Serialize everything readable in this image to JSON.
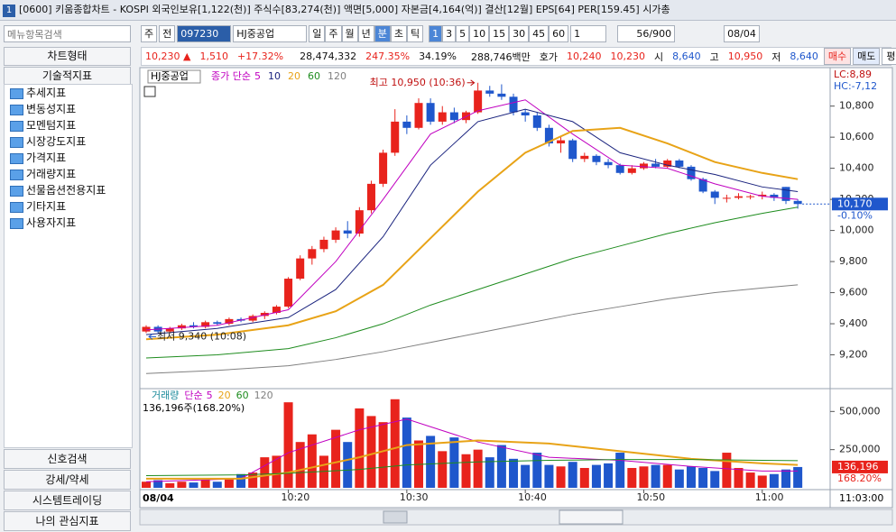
{
  "window": {
    "number": "1",
    "title": "[0600] 키움종합차트 - KOSPI 외국인보유[1,122(천)] 주식수[83,274(천)] 액면[5,000] 자본금[4,164(억)] 결산[12월] EPS[64] PER[159.45] 시가총"
  },
  "toolbar": {
    "search_placeholder": "메뉴항목검색",
    "period": "주",
    "prev": "전",
    "code": "097230",
    "stock": "HJ중공업",
    "buttons": [
      "일",
      "주",
      "월",
      "년",
      "분",
      "초",
      "틱"
    ],
    "minutes": [
      "1",
      "3",
      "5",
      "10",
      "15",
      "30",
      "45",
      "60"
    ],
    "unit": "1",
    "count": "56/900",
    "date": "08/04"
  },
  "quote": {
    "price": "10,230 ▲",
    "change": "1,510",
    "rate": "+17.32%",
    "volume": "28,474,332",
    "vol_rate": "247.35%",
    "turnover": "34.19%",
    "amount": "288,746백만",
    "hoga": "호가",
    "bid": "10,240",
    "ask": "10,230",
    "open_label": "시",
    "open": "8,640",
    "high_label": "고",
    "high": "10,950",
    "low_label": "저",
    "low": "8,640",
    "buy": "매수",
    "sell": "매도",
    "avg": "평"
  },
  "sidebar": {
    "top": [
      "차트형태",
      "기술적지표"
    ],
    "folders": [
      "추세지표",
      "변동성지표",
      "모멘텀지표",
      "시장강도지표",
      "가격지표",
      "거래량지표",
      "선물옵션전용지표",
      "기타지표",
      "사용자지표"
    ],
    "bottom": [
      "신호검색",
      "강세/약세",
      "시스템트레이딩",
      "나의 관심지표"
    ]
  },
  "chart_data": {
    "type": "candlestick",
    "stock_label": "HJ중공업",
    "ma_label": "종가 단순",
    "up_color": "#e8231c",
    "down_color": "#1f57cc",
    "categories": [
      null,
      null,
      null,
      null,
      null,
      null,
      null,
      null,
      null,
      null,
      null,
      null,
      "10:20",
      null,
      null,
      null,
      null,
      null,
      null,
      null,
      null,
      null,
      "10:30",
      null,
      null,
      null,
      null,
      null,
      null,
      null,
      null,
      null,
      "10:40",
      null,
      null,
      null,
      null,
      null,
      null,
      null,
      null,
      null,
      "10:50",
      null,
      null,
      null,
      null,
      null,
      null,
      null,
      null,
      null,
      "11:00",
      null,
      null,
      null
    ],
    "date_label": "08/04",
    "cursor_time": "11:03:00",
    "open": [
      9350,
      9380,
      9350,
      9370,
      9390,
      9380,
      9410,
      9400,
      9430,
      9420,
      9450,
      9470,
      9510,
      9690,
      9820,
      9880,
      9940,
      10000,
      9980,
      10130,
      10300,
      10500,
      10700,
      10660,
      10820,
      10700,
      10760,
      10710,
      10760,
      10900,
      10880,
      10860,
      10760,
      10740,
      10660,
      10560,
      10580,
      10460,
      10480,
      10440,
      10420,
      10370,
      10400,
      10430,
      10410,
      10450,
      10410,
      10330,
      10250,
      10210,
      10210,
      10220,
      10220,
      10230,
      10280,
      10190
    ],
    "high": [
      9390,
      9390,
      9380,
      9400,
      9410,
      9420,
      9420,
      9440,
      9440,
      9460,
      9480,
      9520,
      9700,
      9840,
      9900,
      9960,
      10020,
      10060,
      10150,
      10320,
      10520,
      10780,
      10740,
      10850,
      10850,
      10800,
      10790,
      10770,
      10950,
      10930,
      10940,
      10880,
      10780,
      10760,
      10680,
      10600,
      10590,
      10500,
      10490,
      10460,
      10430,
      10420,
      10440,
      10460,
      10460,
      10460,
      10420,
      10340,
      10260,
      10230,
      10240,
      10230,
      10250,
      10240,
      10280,
      10200
    ],
    "low": [
      9340,
      9340,
      9340,
      9360,
      9370,
      9370,
      9390,
      9390,
      9410,
      9410,
      9430,
      9460,
      9500,
      9680,
      9780,
      9860,
      9920,
      9950,
      9960,
      10110,
      10280,
      10480,
      10620,
      10650,
      10680,
      10680,
      10690,
      10690,
      10750,
      10860,
      10840,
      10740,
      10700,
      10640,
      10540,
      10500,
      10440,
      10440,
      10420,
      10400,
      10360,
      10360,
      10390,
      10400,
      10400,
      10400,
      10320,
      10240,
      10170,
      10180,
      10200,
      10200,
      10200,
      10190,
      10170,
      10140
    ],
    "close": [
      9380,
      9350,
      9370,
      9390,
      9380,
      9410,
      9400,
      9430,
      9420,
      9450,
      9470,
      9510,
      9690,
      9820,
      9880,
      9940,
      10000,
      9980,
      10130,
      10300,
      10500,
      10700,
      10660,
      10820,
      10700,
      10760,
      10710,
      10760,
      10900,
      10880,
      10860,
      10760,
      10740,
      10660,
      10560,
      10580,
      10460,
      10480,
      10440,
      10420,
      10370,
      10400,
      10430,
      10410,
      10450,
      10410,
      10330,
      10250,
      10210,
      10210,
      10220,
      10220,
      10230,
      10210,
      10190,
      10170
    ],
    "volume": [
      40000,
      50000,
      30000,
      40000,
      35000,
      50000,
      40000,
      60000,
      90000,
      100000,
      200000,
      210000,
      560000,
      300000,
      350000,
      210000,
      380000,
      300000,
      520000,
      470000,
      430000,
      580000,
      460000,
      310000,
      340000,
      240000,
      330000,
      220000,
      250000,
      200000,
      280000,
      190000,
      150000,
      230000,
      150000,
      140000,
      170000,
      130000,
      150000,
      160000,
      230000,
      130000,
      140000,
      150000,
      150000,
      120000,
      140000,
      130000,
      110000,
      230000,
      130000,
      100000,
      80000,
      90000,
      120000,
      136196
    ],
    "price_ma": [
      {
        "name": "5",
        "color": "#c000c0",
        "x": [
          0,
          6,
          12,
          16,
          20,
          24,
          28,
          32,
          36,
          40,
          44,
          48,
          52,
          55
        ],
        "values": [
          9360,
          9390,
          9490,
          9800,
          10200,
          10620,
          10770,
          10840,
          10620,
          10420,
          10400,
          10300,
          10220,
          10200
        ]
      },
      {
        "name": "10",
        "color": "#1a237e",
        "x": [
          0,
          6,
          12,
          16,
          20,
          24,
          28,
          32,
          36,
          40,
          44,
          48,
          52,
          55
        ],
        "values": [
          9330,
          9370,
          9440,
          9620,
          9960,
          10420,
          10700,
          10780,
          10700,
          10500,
          10420,
          10360,
          10280,
          10250
        ]
      },
      {
        "name": "20",
        "color": "#e8a317",
        "x": [
          0,
          6,
          12,
          16,
          20,
          24,
          28,
          32,
          36,
          40,
          44,
          48,
          52,
          55
        ],
        "values": [
          9300,
          9330,
          9390,
          9480,
          9650,
          9950,
          10250,
          10500,
          10640,
          10660,
          10560,
          10440,
          10370,
          10330
        ]
      },
      {
        "name": "60",
        "color": "#1e8c1e",
        "x": [
          0,
          6,
          12,
          16,
          20,
          24,
          28,
          32,
          36,
          40,
          44,
          48,
          52,
          55
        ],
        "values": [
          9180,
          9200,
          9240,
          9310,
          9400,
          9520,
          9620,
          9720,
          9820,
          9900,
          9980,
          10050,
          10110,
          10150
        ]
      },
      {
        "name": "120",
        "color": "#808080",
        "x": [
          0,
          6,
          12,
          16,
          20,
          24,
          28,
          32,
          36,
          40,
          44,
          48,
          52,
          55
        ],
        "values": [
          9080,
          9100,
          9130,
          9170,
          9220,
          9280,
          9340,
          9400,
          9460,
          9510,
          9560,
          9600,
          9630,
          9650
        ]
      }
    ],
    "ylim": [
      9000,
      11030
    ],
    "yticks": [
      {
        "value": 9200,
        "label": "9,200"
      },
      {
        "value": 9400,
        "label": "9,400"
      },
      {
        "value": 9600,
        "label": "9,600"
      },
      {
        "value": 9800,
        "label": "9,800"
      },
      {
        "value": 10000,
        "label": "10,000"
      },
      {
        "value": 10200,
        "label": "10,200"
      },
      {
        "value": 10400,
        "label": "10,400"
      },
      {
        "value": 10600,
        "label": "10,600"
      },
      {
        "value": 10800,
        "label": "10,800"
      }
    ],
    "high_note": "최고 10,950 (10:36)",
    "high_index": 28,
    "low_note": "최저 9,340 (10:08)",
    "low_index": 0,
    "lc": "LC:8,89",
    "hc": "HC:-7,12",
    "last_label": "10,170",
    "last_rate": "-0.10%",
    "vol_name": "거래량",
    "vol_ma_label": "단순",
    "vol_info": "136,196주(168.20%)",
    "vol_extra": "120",
    "vol_ma": [
      {
        "name": "5",
        "color": "#c000c0",
        "x": [
          0,
          8,
          12,
          18,
          22,
          28,
          34,
          40,
          46,
          52,
          55
        ],
        "values": [
          40000,
          60000,
          230000,
          380000,
          450000,
          300000,
          200000,
          180000,
          140000,
          110000,
          110000
        ]
      },
      {
        "name": "20",
        "color": "#e8a317",
        "x": [
          0,
          8,
          12,
          18,
          22,
          28,
          34,
          40,
          46,
          52,
          55
        ],
        "values": [
          60000,
          60000,
          100000,
          200000,
          280000,
          310000,
          290000,
          240000,
          190000,
          160000,
          150000
        ]
      },
      {
        "name": "60",
        "color": "#1e8c1e",
        "x": [
          0,
          8,
          12,
          18,
          22,
          28,
          34,
          40,
          46,
          52,
          55
        ],
        "values": [
          80000,
          85000,
          95000,
          120000,
          150000,
          170000,
          180000,
          185000,
          185000,
          180000,
          178000
        ]
      }
    ],
    "vylim": [
      0,
      620000
    ],
    "vyticks": [
      {
        "value": 250000,
        "label": "250,000"
      },
      {
        "value": 500000,
        "label": "500,000"
      }
    ],
    "vol_last_label": "136,196",
    "vol_last_rate": "168.20%"
  }
}
